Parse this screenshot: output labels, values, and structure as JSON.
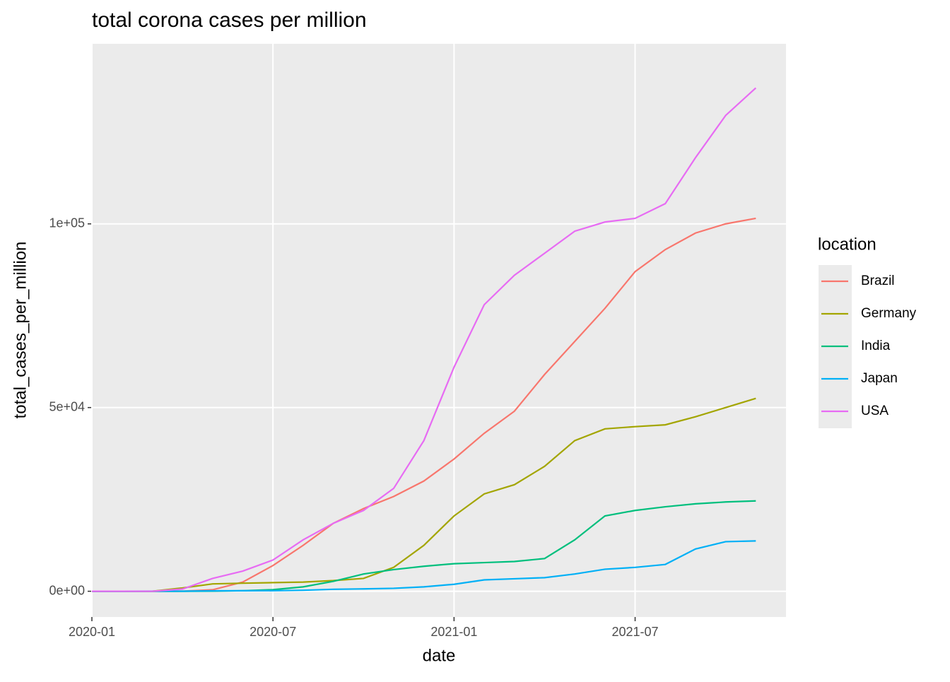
{
  "chart_data": {
    "type": "line",
    "title": "total corona cases per million",
    "x_label": "date",
    "y_label": "total_cases_per_million",
    "legend_title": "location",
    "x": [
      "2020-01",
      "2020-02",
      "2020-03",
      "2020-04",
      "2020-05",
      "2020-06",
      "2020-07",
      "2020-08",
      "2020-09",
      "2020-10",
      "2020-11",
      "2020-12",
      "2021-01",
      "2021-02",
      "2021-03",
      "2021-04",
      "2021-05",
      "2021-06",
      "2021-07",
      "2021-08",
      "2021-09",
      "2021-10",
      "2021-11"
    ],
    "xlim": [
      "2020-01",
      "2021-12"
    ],
    "xticks": [
      "2020-01",
      "2020-07",
      "2021-01",
      "2021-07"
    ],
    "ylim": [
      -7000,
      149000
    ],
    "yticks": [
      {
        "value": 0,
        "label": "0e+00"
      },
      {
        "value": 50000,
        "label": "5e+04"
      },
      {
        "value": 100000,
        "label": "1e+05"
      }
    ],
    "grid": true,
    "legend_position": "right",
    "series": [
      {
        "name": "Brazil",
        "color": "#F8766D",
        "values": [
          0,
          0,
          0,
          30,
          400,
          2500,
          7000,
          12500,
          18500,
          22500,
          25800,
          30000,
          36000,
          43000,
          49000,
          59000,
          68000,
          77000,
          87000,
          93000,
          97500,
          100000,
          101500
        ]
      },
      {
        "name": "Germany",
        "color": "#A3A500",
        "values": [
          0,
          0,
          0,
          900,
          2000,
          2200,
          2350,
          2500,
          2900,
          3500,
          6500,
          12500,
          20500,
          26500,
          29000,
          34000,
          41000,
          44200,
          44800,
          45300,
          47500,
          50000,
          52500
        ]
      },
      {
        "name": "India",
        "color": "#00BF7D",
        "values": [
          0,
          0,
          0,
          0,
          30,
          150,
          430,
          1200,
          2700,
          4700,
          5900,
          6800,
          7500,
          7800,
          8100,
          8900,
          14000,
          20500,
          22000,
          23000,
          23800,
          24300,
          24600
        ]
      },
      {
        "name": "Japan",
        "color": "#00B0F6",
        "values": [
          0,
          0,
          15,
          20,
          110,
          135,
          150,
          270,
          540,
          650,
          800,
          1200,
          1900,
          3100,
          3400,
          3700,
          4700,
          6000,
          6500,
          7300,
          11500,
          13500,
          13700
        ]
      },
      {
        "name": "USA",
        "color": "#E76BF3",
        "values": [
          0,
          0,
          0,
          600,
          3500,
          5500,
          8500,
          14000,
          18500,
          22000,
          28000,
          41000,
          61000,
          78000,
          86000,
          92000,
          98000,
          100500,
          101500,
          105500,
          118000,
          129500,
          137000
        ]
      }
    ]
  }
}
